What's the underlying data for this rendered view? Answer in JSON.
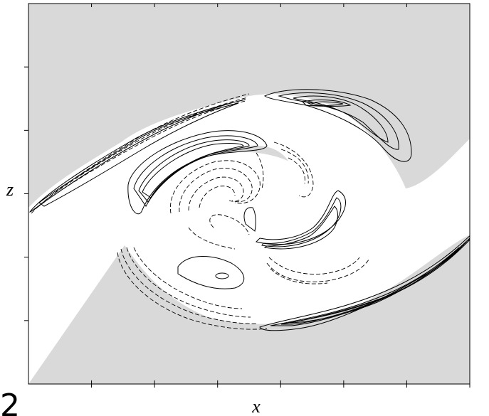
{
  "chart_data": {
    "type": "contour",
    "title": "",
    "xlabel": "x",
    "ylabel": "z",
    "panel_label": "2",
    "xticks": 7,
    "yticks": 5,
    "tick_labels_shown": false,
    "grid": false,
    "legend": "none",
    "series": [
      {
        "name": "",
        "style": "solid contours",
        "description_ref": "positive-levels"
      },
      {
        "name": "",
        "style": "dashed contours",
        "description_ref": "negative-levels"
      }
    ],
    "colors": {
      "shaded_region": "#d9d9d9",
      "background": "#ffffff",
      "contour": "#000000"
    }
  }
}
